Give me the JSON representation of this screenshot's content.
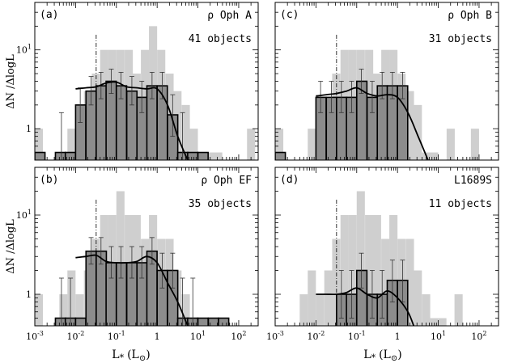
{
  "figure": {
    "ylabel": "ΔN /ΔlogL",
    "xlabel_base": "L",
    "xlabel_sub": "*",
    "xlabel_units": "(L",
    "xlabel_units_close": ")",
    "xlabel_sun": "⊙"
  },
  "chart_data": [
    {
      "type": "bar",
      "panel": "(a)",
      "name": "ρ Oph A",
      "count": "41 objects",
      "xscale": "log",
      "yscale": "log",
      "xlim": [
        0.001,
        300
      ],
      "ylim": [
        0.4,
        40
      ],
      "xticks": [
        "10^-3",
        "10^-2",
        "10^-1",
        "1",
        "10^1",
        "10^2"
      ],
      "yticks": [
        "1",
        "10^1"
      ],
      "vline_x": 0.032,
      "background_hist": {
        "bin_width_dex": 0.2,
        "bins": [
          [
            0.001,
            1
          ],
          [
            0.0016,
            0
          ],
          [
            0.0025,
            0
          ],
          [
            0.004,
            0
          ],
          [
            0.0063,
            1
          ],
          [
            0.01,
            2
          ],
          [
            0.016,
            3
          ],
          [
            0.025,
            5
          ],
          [
            0.04,
            10
          ],
          [
            0.063,
            10
          ],
          [
            0.1,
            10
          ],
          [
            0.16,
            10
          ],
          [
            0.25,
            5
          ],
          [
            0.4,
            10
          ],
          [
            0.63,
            20
          ],
          [
            1,
            10
          ],
          [
            1.6,
            5
          ],
          [
            2.5,
            3
          ],
          [
            4,
            2
          ],
          [
            6.3,
            1
          ],
          [
            10,
            0.5
          ],
          [
            16,
            0.5
          ],
          [
            25,
            0.5
          ],
          [
            40,
            0
          ],
          [
            63,
            0
          ],
          [
            100,
            0
          ],
          [
            160,
            1
          ]
        ]
      },
      "foreground_hist": {
        "bin_width_dex": 0.25,
        "bins": [
          [
            0.001,
            0.5
          ],
          [
            0.0018,
            0
          ],
          [
            0.0032,
            0.5
          ],
          [
            0.0056,
            0.5
          ],
          [
            0.01,
            2
          ],
          [
            0.018,
            3
          ],
          [
            0.032,
            3.5
          ],
          [
            0.056,
            4
          ],
          [
            0.1,
            3.5
          ],
          [
            0.18,
            3
          ],
          [
            0.32,
            2.5
          ],
          [
            0.56,
            3.5
          ],
          [
            1,
            3.5
          ],
          [
            1.8,
            1.5
          ],
          [
            3.2,
            0.5
          ],
          [
            5.6,
            0.5
          ],
          [
            10,
            0.5
          ]
        ],
        "errors": [
          [
            0.0045,
            0.5,
            0.4,
            1.6
          ],
          [
            0.013,
            2,
            1.2,
            3.3
          ],
          [
            0.024,
            3,
            2.0,
            4.6
          ],
          [
            0.042,
            3.5,
            2.4,
            5.2
          ],
          [
            0.075,
            4,
            2.8,
            5.7
          ],
          [
            0.13,
            3.5,
            2.4,
            5.2
          ],
          [
            0.24,
            3,
            2.0,
            4.6
          ],
          [
            0.42,
            2.5,
            1.6,
            4.0
          ],
          [
            0.75,
            3.5,
            2.4,
            5.2
          ],
          [
            1.33,
            3.5,
            2.4,
            5.2
          ],
          [
            2.4,
            1.5,
            0.8,
            2.7
          ],
          [
            4.2,
            0.5,
            0.4,
            1.6
          ]
        ]
      },
      "curve": {
        "x": [
          0.01,
          0.018,
          0.032,
          0.056,
          0.1,
          0.18,
          0.32,
          0.56,
          1,
          1.8,
          3.2,
          5.6
        ],
        "y": [
          3.2,
          3.3,
          3.4,
          3.8,
          3.9,
          3.4,
          3.3,
          3.2,
          3.2,
          2.0,
          0.8,
          0.4
        ]
      }
    },
    {
      "type": "bar",
      "panel": "(c)",
      "name": "ρ Oph B",
      "count": "31 objects",
      "xscale": "log",
      "yscale": "log",
      "xlim": [
        0.001,
        300
      ],
      "ylim": [
        0.4,
        40
      ],
      "xticks": [
        "10^-3",
        "10^-2",
        "10^-1",
        "1",
        "10^1",
        "10^2"
      ],
      "yticks": [
        "1",
        "10^1"
      ],
      "vline_x": 0.032,
      "background_hist": {
        "bin_width_dex": 0.2,
        "bins": [
          [
            0.001,
            1
          ],
          [
            0.0016,
            0
          ],
          [
            0.0025,
            0
          ],
          [
            0.004,
            0
          ],
          [
            0.0063,
            1
          ],
          [
            0.01,
            1
          ],
          [
            0.016,
            2
          ],
          [
            0.025,
            5
          ],
          [
            0.04,
            10
          ],
          [
            0.063,
            10
          ],
          [
            0.1,
            10
          ],
          [
            0.16,
            10
          ],
          [
            0.25,
            5
          ],
          [
            0.4,
            10
          ],
          [
            0.63,
            10
          ],
          [
            1,
            5
          ],
          [
            1.6,
            3
          ],
          [
            2.5,
            2
          ],
          [
            4,
            0.5
          ],
          [
            6.3,
            0.5
          ],
          [
            10,
            0
          ],
          [
            16,
            1
          ],
          [
            25,
            0
          ],
          [
            40,
            0
          ],
          [
            63,
            1
          ],
          [
            100,
            0
          ],
          [
            160,
            0
          ]
        ]
      },
      "foreground_hist": {
        "bin_width_dex": 0.25,
        "bins": [
          [
            0.001,
            0.5
          ],
          [
            0.0018,
            0
          ],
          [
            0.0032,
            0
          ],
          [
            0.0056,
            0
          ],
          [
            0.01,
            2.5
          ],
          [
            0.018,
            2.5
          ],
          [
            0.032,
            2.5
          ],
          [
            0.056,
            2.5
          ],
          [
            0.1,
            4
          ],
          [
            0.18,
            2.5
          ],
          [
            0.32,
            3.5
          ],
          [
            0.56,
            3.5
          ],
          [
            1,
            3.5
          ],
          [
            1.8,
            0
          ]
        ],
        "errors": [
          [
            0.013,
            2.5,
            1.6,
            4.0
          ],
          [
            0.024,
            2.5,
            1.6,
            4.0
          ],
          [
            0.042,
            2.5,
            1.6,
            4.0
          ],
          [
            0.075,
            2.5,
            1.6,
            4.0
          ],
          [
            0.13,
            4,
            2.8,
            5.7
          ],
          [
            0.24,
            2.5,
            1.6,
            4.0
          ],
          [
            0.42,
            3.5,
            2.4,
            5.2
          ],
          [
            0.75,
            3.5,
            2.4,
            5.2
          ],
          [
            1.33,
            3.5,
            2.4,
            5.2
          ]
        ]
      },
      "curve": {
        "x": [
          0.01,
          0.018,
          0.032,
          0.056,
          0.1,
          0.18,
          0.32,
          0.56,
          1,
          1.8,
          3.2,
          5.6
        ],
        "y": [
          2.6,
          2.7,
          2.8,
          3.0,
          3.3,
          2.8,
          2.6,
          2.7,
          2.5,
          1.6,
          0.8,
          0.4
        ]
      }
    },
    {
      "type": "bar",
      "panel": "(b)",
      "name": "ρ Oph EF",
      "count": "35 objects",
      "xscale": "log",
      "yscale": "log",
      "xlim": [
        0.001,
        300
      ],
      "ylim": [
        0.4,
        40
      ],
      "xticks": [
        "10^-3",
        "10^-2",
        "10^-1",
        "1",
        "10^1",
        "10^2"
      ],
      "yticks": [
        "1",
        "10^1"
      ],
      "vline_x": 0.032,
      "background_hist": {
        "bin_width_dex": 0.2,
        "bins": [
          [
            0.001,
            1
          ],
          [
            0.0016,
            0
          ],
          [
            0.0025,
            0
          ],
          [
            0.004,
            1
          ],
          [
            0.0063,
            2
          ],
          [
            0.01,
            1
          ],
          [
            0.016,
            2
          ],
          [
            0.025,
            5
          ],
          [
            0.04,
            10
          ],
          [
            0.063,
            10
          ],
          [
            0.1,
            20
          ],
          [
            0.16,
            10
          ],
          [
            0.25,
            10
          ],
          [
            0.4,
            5
          ],
          [
            0.63,
            10
          ],
          [
            1,
            5
          ],
          [
            1.6,
            5
          ],
          [
            2.5,
            2
          ],
          [
            4,
            1
          ],
          [
            6.3,
            0.5
          ],
          [
            10,
            0.5
          ],
          [
            16,
            0
          ],
          [
            25,
            0.5
          ],
          [
            40,
            0
          ],
          [
            63,
            0
          ],
          [
            100,
            0
          ],
          [
            160,
            0
          ]
        ]
      },
      "foreground_hist": {
        "bin_width_dex": 0.25,
        "bins": [
          [
            0.001,
            0
          ],
          [
            0.0018,
            0
          ],
          [
            0.0032,
            0.5
          ],
          [
            0.0056,
            0.5
          ],
          [
            0.01,
            0.5
          ],
          [
            0.018,
            3.5
          ],
          [
            0.032,
            3.5
          ],
          [
            0.056,
            2.5
          ],
          [
            0.1,
            2.5
          ],
          [
            0.18,
            2.5
          ],
          [
            0.32,
            2.5
          ],
          [
            0.56,
            3.5
          ],
          [
            1,
            2
          ],
          [
            1.8,
            2
          ],
          [
            3.2,
            0.5
          ],
          [
            5.6,
            0.5
          ],
          [
            10,
            0.5
          ],
          [
            18,
            0.5
          ],
          [
            32,
            0.5
          ]
        ],
        "errors": [
          [
            0.0045,
            0.5,
            0.4,
            1.6
          ],
          [
            0.0075,
            0.5,
            0.4,
            1.6
          ],
          [
            0.024,
            3.5,
            2.4,
            5.2
          ],
          [
            0.042,
            3.5,
            2.4,
            5.2
          ],
          [
            0.075,
            2.5,
            1.6,
            4.0
          ],
          [
            0.13,
            2.5,
            1.6,
            4.0
          ],
          [
            0.24,
            2.5,
            1.6,
            4.0
          ],
          [
            0.42,
            2.5,
            1.6,
            4.0
          ],
          [
            0.75,
            3.5,
            2.4,
            5.2
          ],
          [
            1.33,
            2,
            1.2,
            3.3
          ],
          [
            2.4,
            2,
            1.2,
            3.3
          ],
          [
            4.2,
            0.5,
            0.4,
            1.6
          ],
          [
            7.5,
            0.5,
            0.4,
            1.6
          ]
        ]
      },
      "curve": {
        "x": [
          0.01,
          0.018,
          0.032,
          0.056,
          0.1,
          0.18,
          0.32,
          0.56,
          1,
          1.8,
          3.2,
          5.6
        ],
        "y": [
          2.9,
          3.0,
          3.1,
          2.6,
          2.5,
          2.5,
          2.6,
          3.0,
          2.5,
          1.4,
          0.8,
          0.4
        ]
      }
    },
    {
      "type": "bar",
      "panel": "(d)",
      "name": "L1689S",
      "count": "11 objects",
      "xscale": "log",
      "yscale": "log",
      "xlim": [
        0.001,
        300
      ],
      "ylim": [
        0.4,
        40
      ],
      "xticks": [
        "10^-3",
        "10^-2",
        "10^-1",
        "1",
        "10^1",
        "10^2"
      ],
      "yticks": [
        "1",
        "10^1"
      ],
      "vline_x": 0.032,
      "background_hist": {
        "bin_width_dex": 0.2,
        "bins": [
          [
            0.001,
            0
          ],
          [
            0.0016,
            0
          ],
          [
            0.0025,
            0
          ],
          [
            0.004,
            1
          ],
          [
            0.0063,
            2
          ],
          [
            0.01,
            1
          ],
          [
            0.016,
            2
          ],
          [
            0.025,
            5
          ],
          [
            0.04,
            10
          ],
          [
            0.063,
            10
          ],
          [
            0.1,
            20
          ],
          [
            0.16,
            10
          ],
          [
            0.25,
            10
          ],
          [
            0.4,
            5
          ],
          [
            0.63,
            10
          ],
          [
            1,
            5
          ],
          [
            1.6,
            5
          ],
          [
            2.5,
            2
          ],
          [
            4,
            1
          ],
          [
            6.3,
            0.5
          ],
          [
            10,
            0.5
          ],
          [
            16,
            0
          ],
          [
            25,
            1
          ],
          [
            40,
            0
          ],
          [
            63,
            0
          ],
          [
            100,
            0
          ],
          [
            160,
            0
          ]
        ]
      },
      "foreground_hist": {
        "bin_width_dex": 0.25,
        "bins": [
          [
            0.032,
            1
          ],
          [
            0.056,
            1
          ],
          [
            0.1,
            2
          ],
          [
            0.18,
            1
          ],
          [
            0.32,
            1
          ],
          [
            0.56,
            1.5
          ],
          [
            1,
            1.5
          ],
          [
            1.8,
            0
          ]
        ],
        "errors": [
          [
            0.042,
            1,
            0.5,
            2.0
          ],
          [
            0.075,
            1,
            0.5,
            2.0
          ],
          [
            0.13,
            2,
            1.2,
            3.3
          ],
          [
            0.24,
            1,
            0.5,
            2.0
          ],
          [
            0.42,
            1,
            0.5,
            2.0
          ],
          [
            0.75,
            1.5,
            0.8,
            2.7
          ],
          [
            1.33,
            1.5,
            0.8,
            2.7
          ]
        ]
      },
      "curve": {
        "x": [
          0.01,
          0.018,
          0.032,
          0.056,
          0.1,
          0.18,
          0.32,
          0.56,
          1,
          1.8,
          2.5
        ],
        "y": [
          1.0,
          1.0,
          1.0,
          1.05,
          1.2,
          1.0,
          0.9,
          1.1,
          0.9,
          0.6,
          0.4
        ]
      }
    }
  ]
}
